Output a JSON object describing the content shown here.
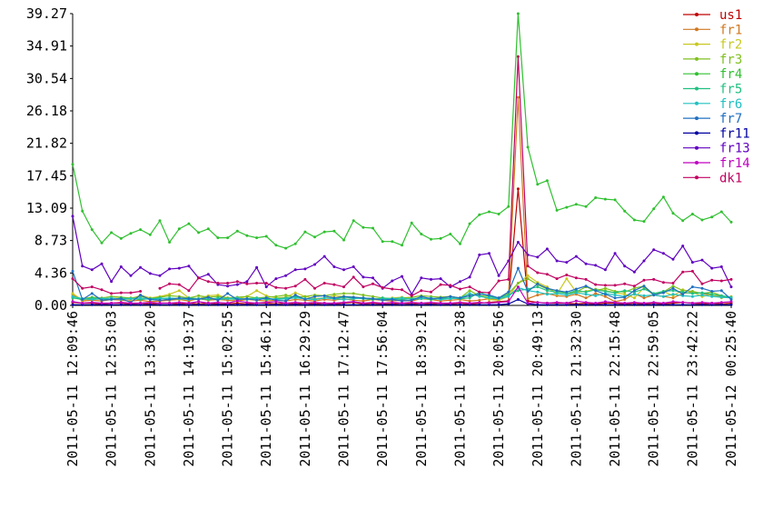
{
  "chart_data": {
    "type": "line",
    "categories": [
      "2011-05-11 12:09:46",
      null,
      null,
      null,
      "2011-05-11 12:53:03",
      null,
      null,
      null,
      "2011-05-11 13:36:20",
      null,
      null,
      null,
      "2011-05-11 14:19:37",
      null,
      null,
      null,
      "2011-05-11 15:02:55",
      null,
      null,
      null,
      "2011-05-11 15:46:12",
      null,
      null,
      null,
      "2011-05-11 16:29:29",
      null,
      null,
      null,
      "2011-05-11 17:12:47",
      null,
      null,
      null,
      "2011-05-11 17:56:04",
      null,
      null,
      null,
      "2011-05-11 18:39:21",
      null,
      null,
      null,
      "2011-05-11 19:22:38",
      null,
      null,
      null,
      "2011-05-11 20:05:56",
      null,
      null,
      null,
      "2011-05-11 20:49:13",
      null,
      null,
      null,
      "2011-05-11 21:32:30",
      null,
      null,
      null,
      "2011-05-11 22:15:48",
      null,
      null,
      null,
      "2011-05-11 22:59:05",
      null,
      null,
      null,
      "2011-05-11 23:42:22",
      null,
      null,
      null,
      "2011-05-12 00:25:40"
    ],
    "ylim": [
      0,
      39.27
    ],
    "yticks": [
      {
        "value": 0,
        "label": "0.00"
      },
      4.36,
      8.73,
      13.09,
      17.45,
      21.82,
      26.18,
      30.54,
      34.91,
      39.27
    ],
    "grid": false,
    "legend": "right",
    "series": [
      {
        "name": "us1",
        "color": "#c00000",
        "values": [
          0.4,
          0.3,
          0.3,
          0.2,
          0.3,
          0.3,
          0.2,
          0.3,
          0.2,
          0.3,
          0.3,
          0.2,
          0.3,
          0.2,
          0.3,
          0.2,
          0.2,
          0.3,
          0.2,
          0.3,
          0.3,
          0.2,
          0.3,
          0.2,
          0.3,
          0.2,
          0.3,
          0.2,
          0.3,
          0.4,
          0.2,
          0.3,
          0.2,
          0.2,
          0.3,
          0.2,
          0.3,
          0.2,
          0.3,
          0.2,
          0.3,
          0.2,
          0.3,
          0.4,
          0.5,
          0.6,
          15.7,
          0.6,
          0.4,
          0.3,
          0.3,
          0.3,
          0.2,
          0.3,
          0.2,
          0.3,
          0.3,
          0.2,
          0.3,
          0.2,
          0.3,
          0.2,
          0.3,
          0.4,
          0.3,
          0.2,
          0.3,
          0.2,
          0.3
        ]
      },
      {
        "name": "fr1",
        "color": "#d07820",
        "values": [
          1.5,
          0.6,
          0.7,
          0.6,
          0.8,
          0.7,
          0.6,
          0.7,
          0.5,
          0.6,
          0.7,
          0.8,
          0.6,
          0.9,
          0.7,
          0.8,
          0.7,
          0.6,
          0.8,
          0.7,
          0.6,
          0.7,
          0.6,
          0.8,
          0.7,
          0.6,
          0.8,
          0.7,
          0.9,
          0.7,
          0.6,
          0.8,
          0.7,
          0.6,
          0.7,
          0.6,
          0.9,
          0.8,
          0.6,
          0.7,
          0.8,
          0.6,
          0.7,
          0.9,
          0.8,
          1.2,
          28.0,
          0.9,
          1.4,
          1.6,
          1.3,
          1.2,
          1.5,
          1.0,
          1.6,
          1.2,
          0.5,
          0.8,
          1.6,
          1.0,
          1.4,
          1.2,
          1.0,
          1.6,
          1.8,
          1.6,
          1.4,
          1.2,
          1.1
        ]
      },
      {
        "name": "fr2",
        "color": "#c8c820",
        "values": [
          1.6,
          0.7,
          0.9,
          0.8,
          1.0,
          0.9,
          0.8,
          1.4,
          1.0,
          1.2,
          1.5,
          2.0,
          1.0,
          0.9,
          1.3,
          1.4,
          1.0,
          0.9,
          1.2,
          2.0,
          1.3,
          1.0,
          1.1,
          1.7,
          1.2,
          0.9,
          1.0,
          1.3,
          1.2,
          1.1,
          1.0,
          0.9,
          0.8,
          1.0,
          1.1,
          0.9,
          1.0,
          0.8,
          1.1,
          1.2,
          1.0,
          1.5,
          1.4,
          0.8,
          0.7,
          1.2,
          3.0,
          4.0,
          3.1,
          2.5,
          1.5,
          3.6,
          1.8,
          1.9,
          2.2,
          2.0,
          1.7,
          1.5,
          1.0,
          2.4,
          1.4,
          1.9,
          1.3,
          2.1,
          1.8,
          1.2,
          1.5,
          1.0,
          1.2
        ]
      },
      {
        "name": "fr3",
        "color": "#80c020",
        "values": [
          1.2,
          0.9,
          1.1,
          1.0,
          1.2,
          1.1,
          1.0,
          1.2,
          0.9,
          1.1,
          1.3,
          1.2,
          1.0,
          1.3,
          1.1,
          1.2,
          1.0,
          1.1,
          1.2,
          1.0,
          1.1,
          1.2,
          1.4,
          1.1,
          1.2,
          1.4,
          1.3,
          1.5,
          1.6,
          1.6,
          1.4,
          1.2,
          1.0,
          0.9,
          1.0,
          1.1,
          1.3,
          1.2,
          1.1,
          1.2,
          1.0,
          2.0,
          1.3,
          1.2,
          1.0,
          1.6,
          3.0,
          3.6,
          2.8,
          2.2,
          2.0,
          1.6,
          1.8,
          2.5,
          2.0,
          2.3,
          1.9,
          1.8,
          2.3,
          2.6,
          1.5,
          1.8,
          2.6,
          2.0,
          1.9,
          1.6,
          1.8,
          1.3,
          1.0
        ]
      },
      {
        "name": "fr4",
        "color": "#30c030",
        "values": [
          19,
          12.7,
          10.2,
          8.4,
          9.8,
          9.0,
          9.7,
          10.2,
          9.5,
          11.4,
          8.5,
          10.3,
          11,
          9.8,
          10.3,
          9.1,
          9.1,
          10,
          9.4,
          9.1,
          9.3,
          8.1,
          7.7,
          8.3,
          9.9,
          9.2,
          9.9,
          10,
          8.8,
          11.4,
          10.5,
          10.4,
          8.6,
          8.6,
          8.1,
          11.1,
          9.6,
          8.9,
          9.0,
          9.6,
          8.3,
          11,
          12.2,
          12.6,
          12.3,
          13.3,
          39.27,
          21.3,
          16.3,
          16.8,
          12.8,
          13.2,
          13.6,
          13.3,
          14.5,
          14.3,
          14.2,
          12.7,
          11.5,
          11.3,
          13,
          14.6,
          12.4,
          11.4,
          12.3,
          11.5,
          11.9,
          12.6,
          11.2
        ]
      },
      {
        "name": "fr5",
        "color": "#20c080",
        "values": [
          1.0,
          0.8,
          1.0,
          0.9,
          0.8,
          1.0,
          0.9,
          0.8,
          0.9,
          1.0,
          0.8,
          0.9,
          1.0,
          0.9,
          0.8,
          1.0,
          0.9,
          0.8,
          0.9,
          1.0,
          0.8,
          0.9,
          1.0,
          1.2,
          0.9,
          0.8,
          1.0,
          0.9,
          1.1,
          1.0,
          0.9,
          0.8,
          1.0,
          0.9,
          0.8,
          0.9,
          1.0,
          0.8,
          0.9,
          1.0,
          0.9,
          1.0,
          1.8,
          1.2,
          1.0,
          1.4,
          2.0,
          2.2,
          2.5,
          2.0,
          1.8,
          1.6,
          2.0,
          1.8,
          2.1,
          1.9,
          1.7,
          2.0,
          1.8,
          2.2,
          1.6,
          1.9,
          2.0,
          1.8,
          1.6,
          1.7,
          1.5,
          1.3,
          1.1
        ]
      },
      {
        "name": "fr6",
        "color": "#20c0c0",
        "values": [
          1.2,
          0.9,
          0.8,
          0.9,
          1.0,
          0.8,
          0.9,
          1.0,
          0.8,
          0.9,
          1.0,
          0.9,
          0.8,
          0.9,
          1.0,
          0.8,
          0.9,
          1.0,
          0.8,
          0.9,
          1.0,
          0.8,
          0.9,
          1.0,
          0.9,
          0.8,
          1.0,
          0.9,
          0.8,
          0.9,
          1.0,
          0.9,
          0.8,
          0.9,
          1.0,
          0.8,
          0.9,
          1.0,
          0.8,
          0.9,
          1.0,
          1.6,
          1.2,
          1.0,
          0.9,
          1.2,
          2.4,
          2.0,
          1.8,
          1.5,
          1.6,
          1.4,
          1.7,
          1.5,
          1.3,
          1.6,
          1.4,
          1.2,
          1.5,
          1.3,
          1.4,
          1.2,
          1.5,
          1.3,
          1.2,
          1.4,
          1.2,
          1.1,
          1.0
        ]
      },
      {
        "name": "fr7",
        "color": "#2070c0",
        "values": [
          4.6,
          0.8,
          1.6,
          0.7,
          0.8,
          0.9,
          0.4,
          1.4,
          0.8,
          0.7,
          0.8,
          1.0,
          0.9,
          0.8,
          1.1,
          0.7,
          1.6,
          0.8,
          0.9,
          0.7,
          1.0,
          0.7,
          0.6,
          1.4,
          0.8,
          1.2,
          1.3,
          1.0,
          1.2,
          1.1,
          1.0,
          0.9,
          0.7,
          0.8,
          0.6,
          0.7,
          1.2,
          0.9,
          1.0,
          1.2,
          1.0,
          1.3,
          1.5,
          1.4,
          1.0,
          1.8,
          5.0,
          1.9,
          2.9,
          2.3,
          2.0,
          1.8,
          2.2,
          2.6,
          2.0,
          1.5,
          1.0,
          1.1,
          2.0,
          2.6,
          1.4,
          1.7,
          2.3,
          1.5,
          2.5,
          2.3,
          1.9,
          2.0,
          0.8
        ]
      },
      {
        "name": "fr11",
        "color": "#0000a0",
        "values": [
          0.1,
          0.1,
          0.1,
          0.1,
          0.1,
          0.1,
          0.1,
          0.1,
          0.1,
          0.1,
          0.1,
          0.1,
          0.1,
          0.1,
          0.1,
          0.1,
          0.1,
          0.1,
          0.1,
          0.1,
          0.1,
          0.1,
          0.1,
          0.1,
          0.1,
          0.1,
          0.1,
          0.1,
          0.1,
          0.1,
          0.1,
          0.1,
          0.1,
          0.1,
          0.1,
          0.1,
          0.1,
          0.1,
          0.1,
          0.1,
          0.1,
          0.1,
          0.1,
          0.1,
          0.1,
          0.2,
          0.8,
          0.2,
          0.1,
          0.1,
          0.1,
          0.1,
          0.1,
          0.1,
          0.1,
          0.1,
          0.1,
          0.1,
          0.1,
          0.1,
          0.1,
          0.1,
          0.1,
          0.1,
          0.1,
          0.1,
          0.1,
          0.1,
          0.1
        ]
      },
      {
        "name": "fr13",
        "color": "#6000c0",
        "values": [
          12,
          5.3,
          4.8,
          5.6,
          3.2,
          5.2,
          4,
          5.1,
          4.3,
          4,
          4.9,
          5,
          5.3,
          3.7,
          4.2,
          2.8,
          2.6,
          2.8,
          3.2,
          5.1,
          2.5,
          3.6,
          4.0,
          4.8,
          4.9,
          5.5,
          6.6,
          5.2,
          4.8,
          5.2,
          3.8,
          3.7,
          2.3,
          3.3,
          3.9,
          1.5,
          3.7,
          3.5,
          3.6,
          2.5,
          3.2,
          3.8,
          6.8,
          7.0,
          4.0,
          6.0,
          8.5,
          6.8,
          6.5,
          7.6,
          6,
          5.8,
          6.6,
          5.6,
          5.4,
          4.8,
          7,
          5.3,
          4.5,
          6,
          7.5,
          7,
          6.2,
          8,
          5.8,
          6.1,
          5,
          5.2,
          2.5
        ]
      },
      {
        "name": "fr14",
        "color": "#c000c0",
        "values": [
          0.5,
          0.3,
          0.4,
          0.3,
          0.3,
          0.4,
          0.3,
          0.3,
          0.4,
          0.3,
          0.3,
          0.4,
          0.3,
          0.5,
          0.3,
          0.4,
          0.3,
          0.6,
          0.4,
          0.3,
          0.4,
          0.5,
          0.3,
          0.4,
          0.3,
          0.4,
          0.3,
          0.3,
          0.4,
          0.5,
          0.3,
          0.4,
          0.3,
          0.4,
          0.3,
          0.4,
          0.3,
          0.4,
          0.3,
          0.3,
          0.4,
          0.3,
          0.4,
          0.3,
          0.4,
          0.5,
          2.5,
          0.3,
          0.4,
          0.3,
          0.4,
          0.3,
          0.6,
          0.4,
          0.3,
          0.5,
          0.4,
          0.3,
          0.4,
          0.3,
          0.4,
          0.3,
          0.5,
          0.4,
          0.3,
          0.4,
          0.3,
          0.4,
          0.5
        ]
      },
      {
        "name": "dk1",
        "color": "#c00060",
        "values": [
          3.6,
          2.3,
          2.5,
          2.1,
          1.6,
          1.7,
          1.7,
          1.9,
          null,
          2.3,
          2.9,
          2.8,
          2.0,
          3.7,
          3.2,
          3.0,
          3.0,
          3.2,
          2.9,
          3.0,
          3.0,
          2.4,
          2.3,
          2.6,
          3.5,
          2.3,
          3.0,
          2.8,
          2.5,
          3.8,
          2.5,
          2.9,
          2.4,
          2.2,
          2.1,
          1.3,
          2.0,
          1.8,
          2.8,
          2.7,
          2.2,
          2.5,
          1.8,
          1.7,
          3.3,
          3.5,
          33.5,
          5.3,
          4.4,
          4.2,
          3.6,
          4.1,
          3.7,
          3.5,
          2.8,
          2.7,
          2.7,
          2.9,
          2.6,
          3.4,
          3.5,
          3.1,
          3.0,
          4.5,
          4.6,
          2.9,
          3.4,
          3.3,
          3.5
        ]
      }
    ]
  }
}
